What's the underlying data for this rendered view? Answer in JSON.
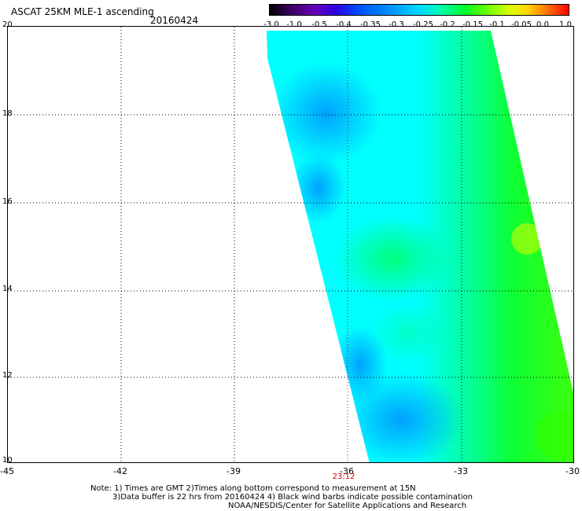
{
  "title": "ASCAT 25KM MLE-1 ascending",
  "date": "20160424",
  "colorbar": {
    "labels": [
      "-3.0",
      "-1.0",
      "-0.5",
      "-0.4",
      "-0.35",
      "-0.3",
      "-0.25",
      "-0.2",
      "-0.15",
      "-0.1",
      "-0.05",
      "0.0",
      "1.0"
    ]
  },
  "map": {
    "lat_labels": [
      "20",
      "18",
      "16",
      "14",
      "12",
      "10"
    ],
    "lon_labels": [
      "-45",
      "-42",
      "-39",
      "-36",
      "-33",
      "-30"
    ],
    "lat_range": [
      10,
      20
    ],
    "lon_range": [
      -45,
      -30
    ],
    "time_label": "23:12",
    "time_label_color": "#d00000",
    "grid": "dotted",
    "swath": {
      "description_colors": {
        "low": "#0090ff",
        "mid": "#00ffff",
        "high": "#00ff30",
        "peak": "#d8ff00"
      }
    }
  },
  "notes": {
    "line1": "Note: 1) Times are GMT 2)Times along bottom correspond to measurement at 15N",
    "line2": "3)Data buffer is 22 hrs from 20160424 4) Black wind barbs indicate possible contamination",
    "line3": "NOAA/NESDIS/Center for Satellite Applications and Research"
  }
}
